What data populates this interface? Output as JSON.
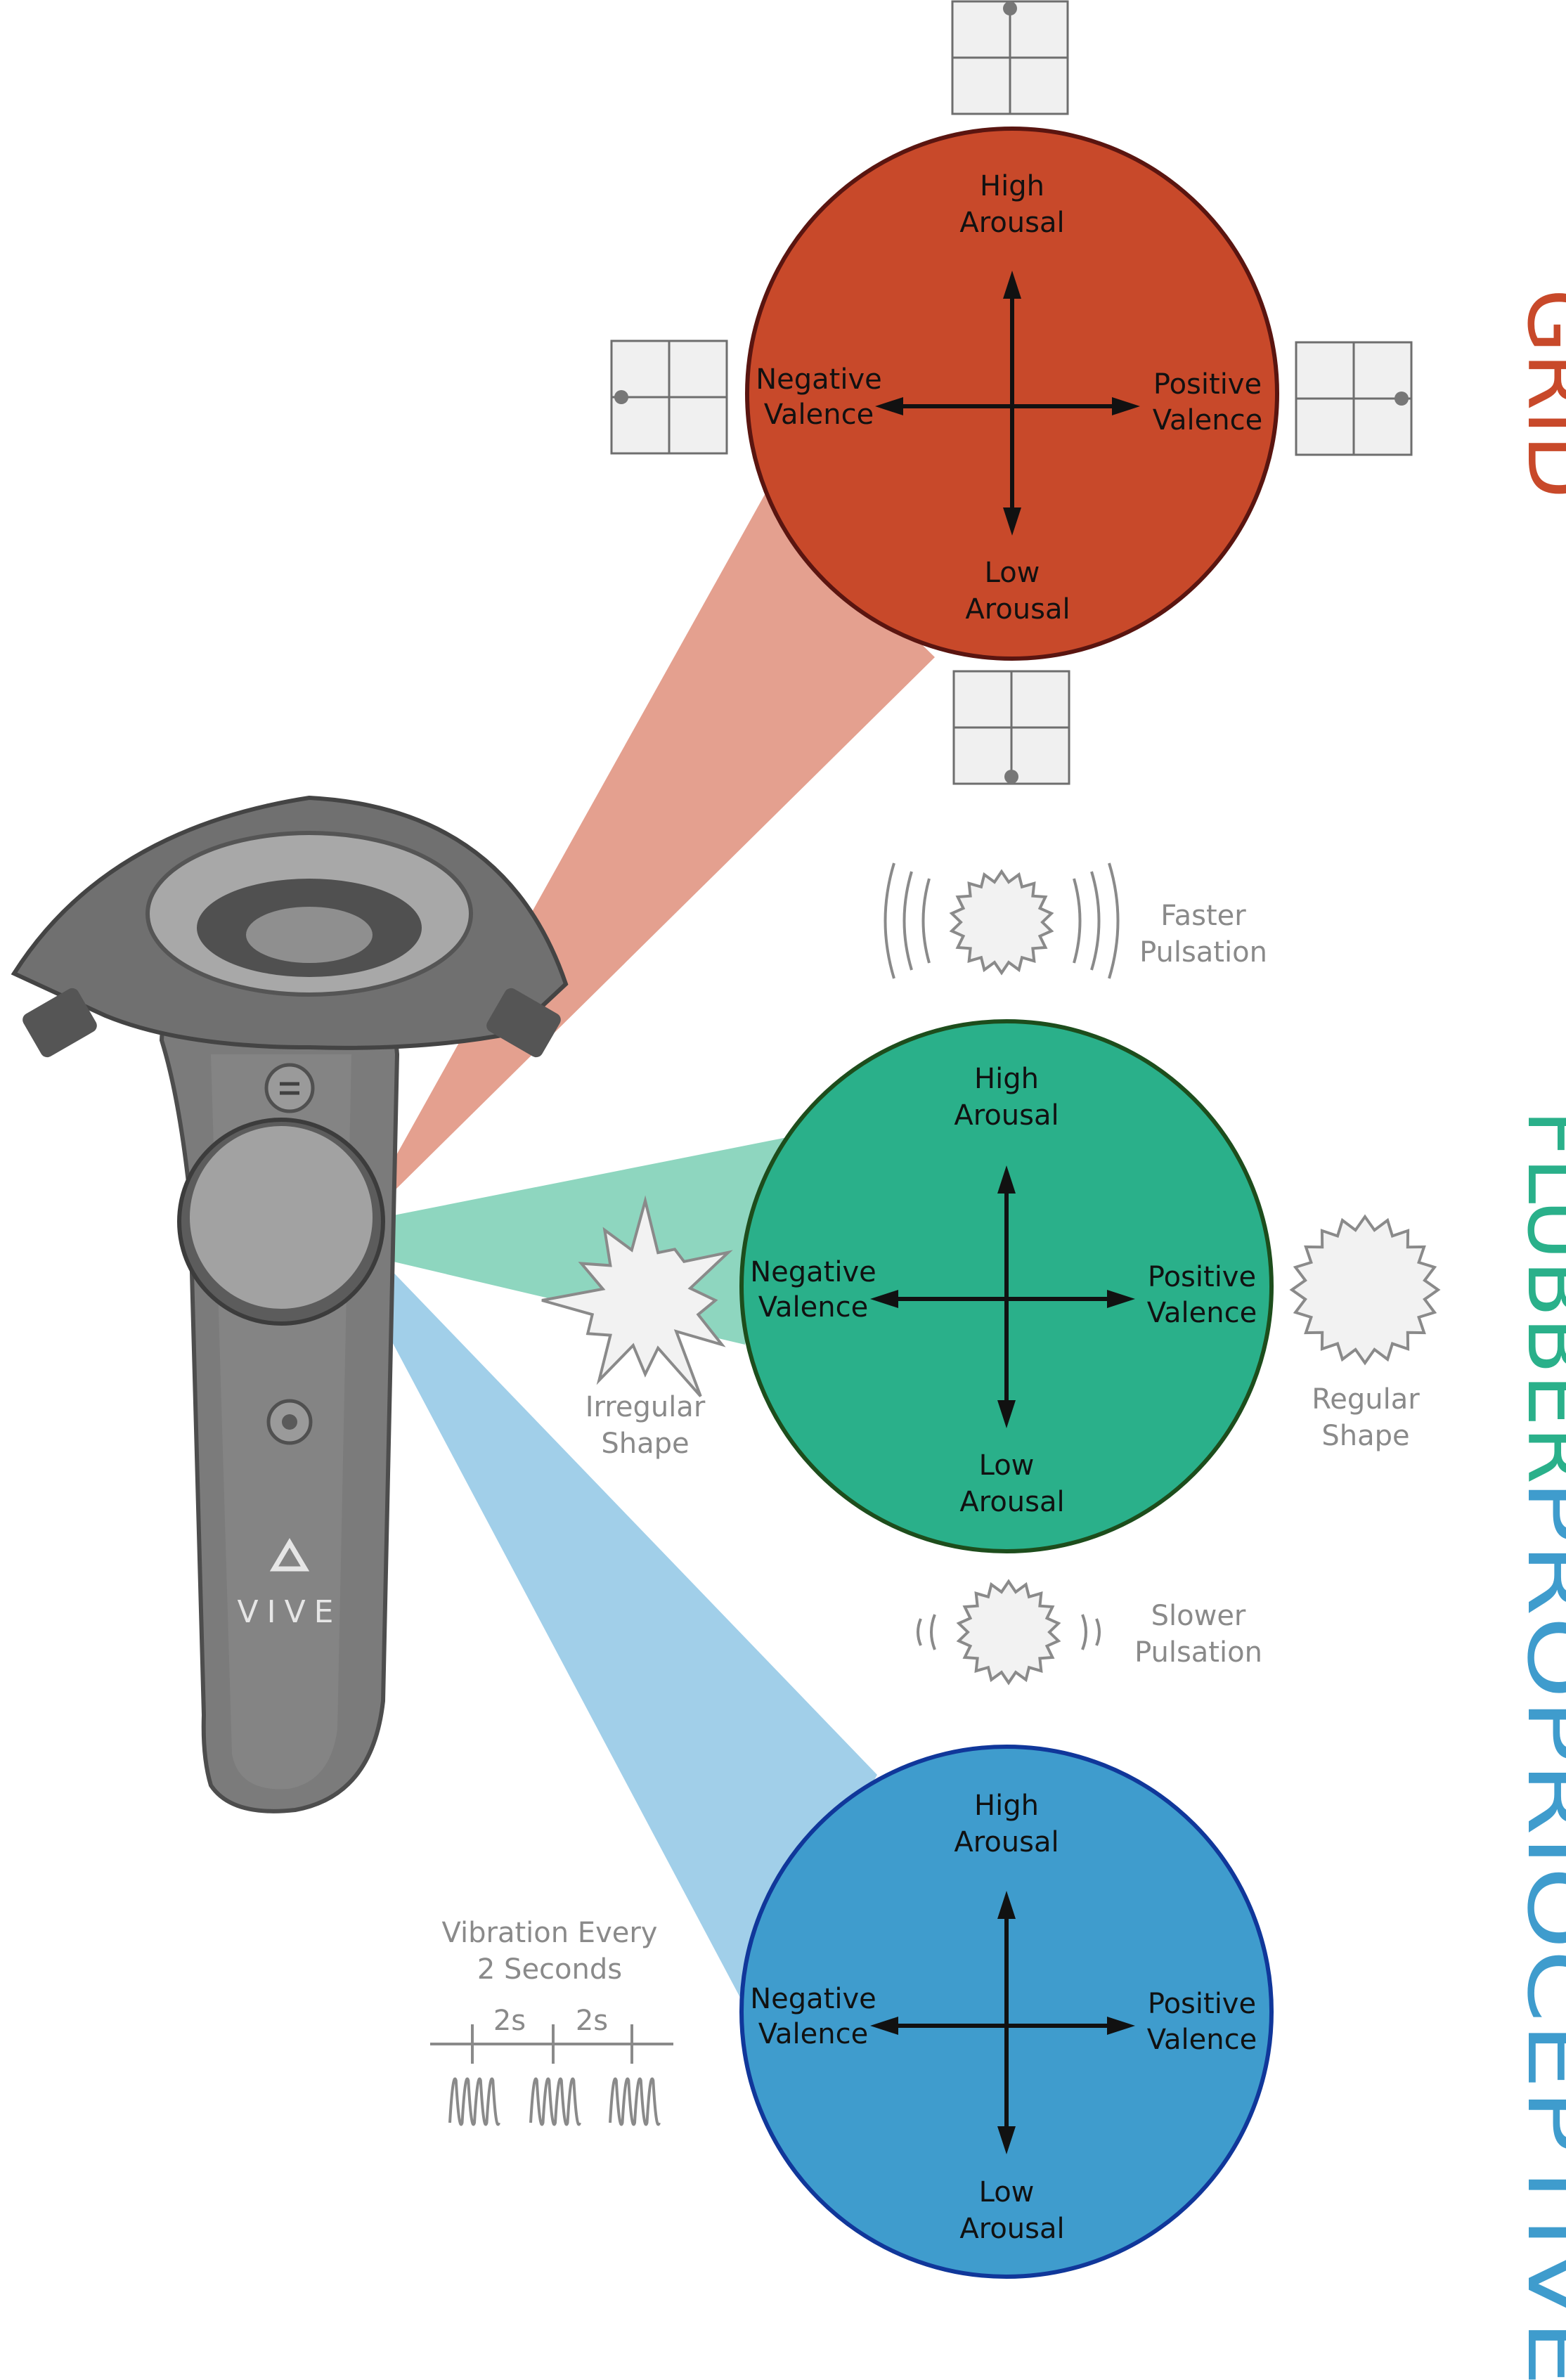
{
  "colors": {
    "grid": "#c8492a",
    "grid_border": "#5a1510",
    "flubber": "#2ab08a",
    "flubber_border": "#1d4d1c",
    "proprioceptive": "#3f9ccd",
    "proprioceptive_border": "#10379a",
    "grid_beam": "#dc8570",
    "flubber_beam": "#5ec4a4",
    "proprioceptive_beam": "#6fb5dd",
    "note_gray": "#8a8a8a"
  },
  "conditions": {
    "grid": {
      "title": "GRID",
      "high": [
        "High",
        "Arousal"
      ],
      "low": [
        "Low",
        "Arousal"
      ],
      "negative": [
        "Negative",
        "Valence"
      ],
      "positive": [
        "Positive",
        "Valence"
      ]
    },
    "flubber": {
      "title": "FLUBBER",
      "high": [
        "High",
        "Arousal"
      ],
      "low": [
        "Low",
        "Arousal"
      ],
      "negative": [
        "Negative",
        "Valence"
      ],
      "positive": [
        "Positive",
        "Valence"
      ]
    },
    "proprioceptive": {
      "title": "PROPRIOCEPTIVE",
      "high": [
        "High",
        "Arousal"
      ],
      "low": [
        "Low",
        "Arousal"
      ],
      "negative": [
        "Negative",
        "Valence"
      ],
      "positive": [
        "Positive",
        "Valence"
      ]
    }
  },
  "flubber_notes": {
    "faster": [
      "Faster",
      "Pulsation"
    ],
    "slower": [
      "Slower",
      "Pulsation"
    ],
    "irregular": [
      "Irregular",
      "Shape"
    ],
    "regular": [
      "Regular",
      "Shape"
    ]
  },
  "vibration": {
    "caption": [
      "Vibration Every",
      "2 Seconds"
    ],
    "interval_1": "2s",
    "interval_2": "2s"
  },
  "controller": {
    "brand": "VIVE"
  }
}
